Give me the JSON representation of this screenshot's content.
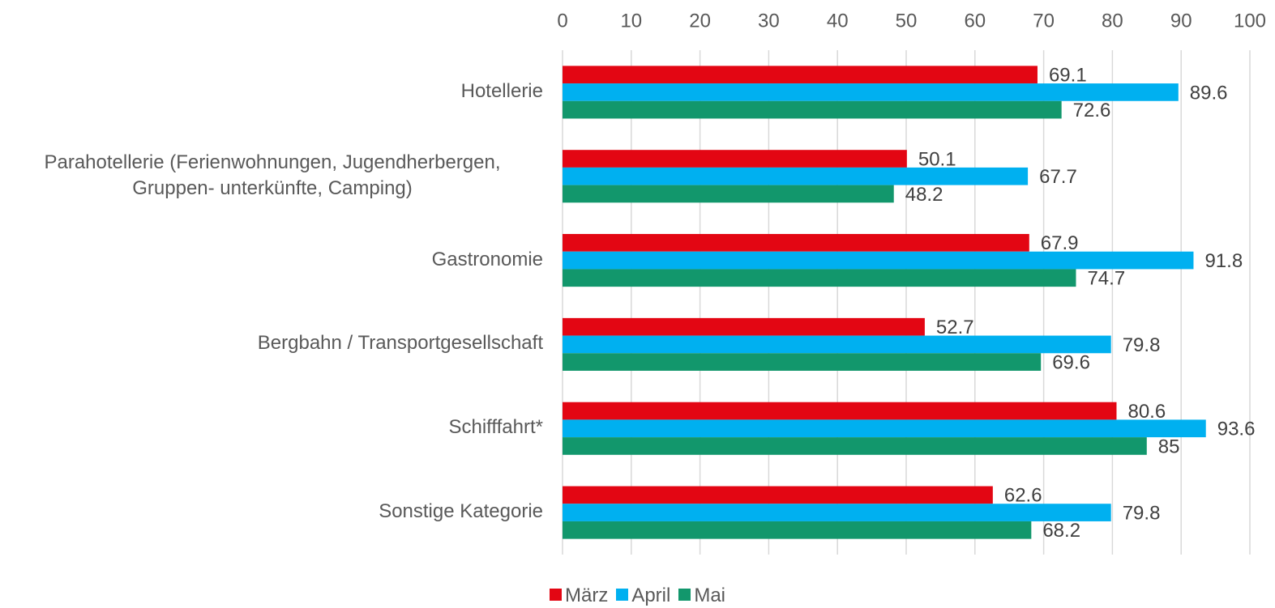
{
  "chart_data": {
    "type": "bar",
    "orientation": "horizontal",
    "categories": [
      "Hotellerie",
      "Parahotellerie (Ferienwohnungen, Jugendherbergen, Gruppen- unterkünfte, Camping)",
      "Gastronomie",
      "Bergbahn / Transportgesellschaft",
      "Schifffahrt*",
      "Sonstige Kategorie"
    ],
    "series": [
      {
        "name": "März",
        "color": "#e30613",
        "values": [
          69.1,
          50.1,
          67.9,
          52.7,
          80.6,
          62.6
        ]
      },
      {
        "name": "April",
        "color": "#00b0f0",
        "values": [
          89.6,
          67.7,
          91.8,
          79.8,
          93.6,
          79.8
        ]
      },
      {
        "name": "Mai",
        "color": "#12976c",
        "values": [
          72.6,
          48.2,
          74.7,
          69.6,
          85,
          68.2
        ]
      }
    ],
    "xlim": [
      0,
      100
    ],
    "xticks": [
      0,
      10,
      20,
      30,
      40,
      50,
      60,
      70,
      80,
      90,
      100
    ],
    "grid": true,
    "legend": "bottom"
  }
}
